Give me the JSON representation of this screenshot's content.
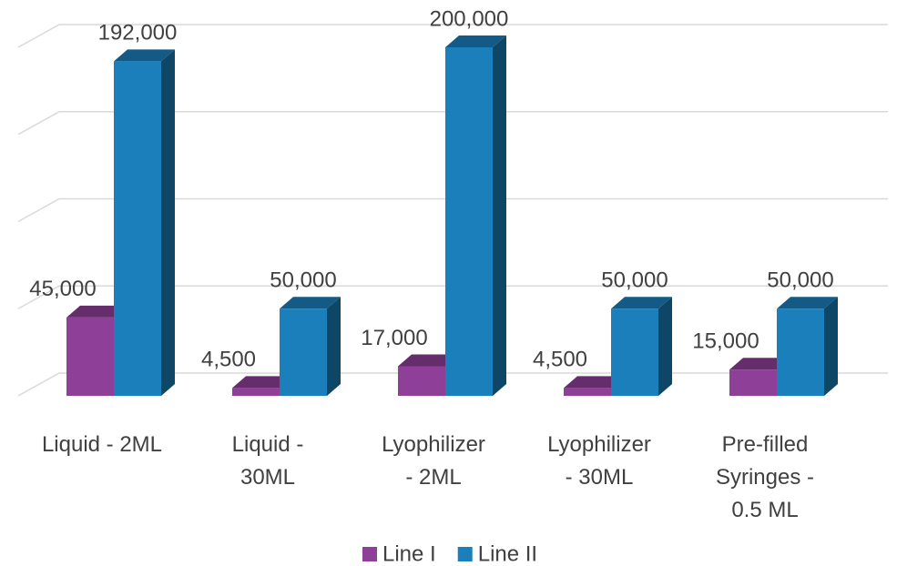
{
  "chart_data": {
    "type": "bar3d",
    "categories": [
      "Liquid - 2ML",
      "Liquid - 30ML",
      "Lyophilizer - 2ML",
      "Lyophilizer - 30ML",
      "Pre-filled Syringes - 0.5 ML"
    ],
    "series": [
      {
        "name": "Line I",
        "color": "#8e3f97",
        "values": [
          45000,
          4500,
          17000,
          4500,
          15000
        ],
        "value_labels": [
          "45,000",
          "4,500",
          "17,000",
          "4,500",
          "15,000"
        ]
      },
      {
        "name": "Line II",
        "color": "#1a7fba",
        "values": [
          192000,
          50000,
          200000,
          50000,
          50000
        ],
        "value_labels": [
          "192,000",
          "50,000",
          "200,000",
          "50,000",
          "50,000"
        ]
      }
    ],
    "ylim": [
      0,
      200000
    ],
    "yticks": [
      0,
      50000,
      100000,
      150000,
      200000
    ],
    "grid": true,
    "legend": "bottom"
  }
}
